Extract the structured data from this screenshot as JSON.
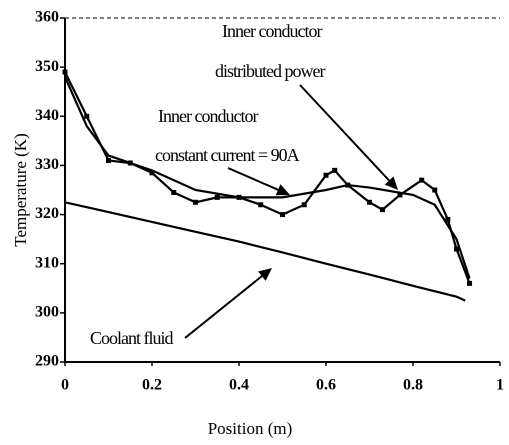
{
  "chart_data": {
    "type": "line",
    "xlabel": "Position (m)",
    "ylabel": "Temperature (K)",
    "xlim": [
      0,
      1
    ],
    "xticks": [
      0,
      0.2,
      0.4,
      0.6,
      0.8,
      1
    ],
    "ylim": [
      290,
      360
    ],
    "yticks": [
      290,
      300,
      310,
      320,
      330,
      340,
      350,
      360
    ],
    "series": [
      {
        "color": "#000000",
        "marker": "square",
        "x": [
          0,
          0.05,
          0.1,
          0.15,
          0.2,
          0.25,
          0.3,
          0.35,
          0.4,
          0.45,
          0.5,
          0.55,
          0.6,
          0.62,
          0.65,
          0.7,
          0.73,
          0.77,
          0.82,
          0.85,
          0.88,
          0.9,
          0.93
        ],
        "values": [
          349,
          340,
          331,
          330.5,
          328.5,
          324.5,
          322.5,
          323.5,
          323.5,
          322,
          320,
          322,
          328,
          329,
          326,
          322.5,
          321,
          324,
          327,
          325,
          319,
          313,
          306
        ]
      },
      {
        "color": "#000000",
        "x": [
          0,
          0.05,
          0.1,
          0.2,
          0.3,
          0.4,
          0.5,
          0.6,
          0.65,
          0.7,
          0.8,
          0.85,
          0.9,
          0.93
        ],
        "values": [
          348,
          338,
          332,
          329,
          325,
          323.5,
          323.5,
          325,
          326,
          325.5,
          324,
          322,
          315,
          307
        ]
      },
      {
        "color": "#000000",
        "x": [
          0,
          0.1,
          0.2,
          0.3,
          0.4,
          0.5,
          0.6,
          0.7,
          0.8,
          0.9,
          0.92
        ],
        "values": [
          322.5,
          320.5,
          318.5,
          316.5,
          314.5,
          312.3,
          310,
          307.8,
          305.5,
          303.3,
          302.5
        ]
      }
    ],
    "annotations": [
      {
        "lines": [
          "Inner conductor",
          "distributed power"
        ]
      },
      {
        "lines": [
          "Inner conductor",
          "constant current = 90A"
        ]
      },
      {
        "lines": [
          "Coolant fluid"
        ]
      }
    ]
  }
}
